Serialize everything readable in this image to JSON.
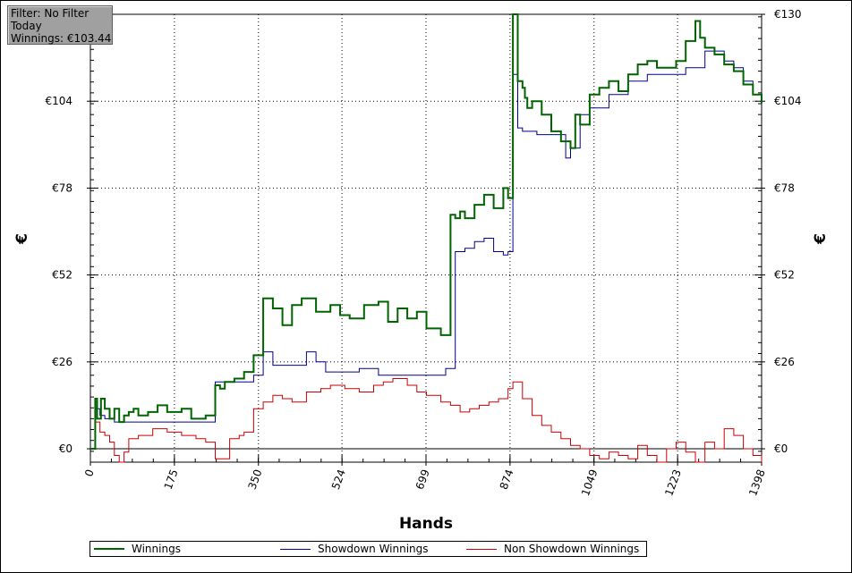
{
  "filter_box": {
    "line1": "Filter: No Filter",
    "line2": "Today",
    "line3": "Winnings: €103.44"
  },
  "chart_data": {
    "type": "line",
    "xlabel": "Hands",
    "ylabel_left": "€",
    "ylabel_right": "€",
    "xlim": [
      0,
      1398
    ],
    "ylim": [
      -4,
      130
    ],
    "x_ticks": [
      "0",
      "175",
      "350",
      "524",
      "699",
      "874",
      "1049",
      "1223",
      "1398"
    ],
    "y_ticks": [
      "€0",
      "€26",
      "€52",
      "€78",
      "€104",
      "€130"
    ],
    "y_tick_values": [
      0,
      26,
      52,
      78,
      104,
      130
    ],
    "x_tick_values": [
      0,
      175,
      350,
      524,
      699,
      874,
      1049,
      1223,
      1398
    ],
    "grid": true,
    "legend_position": "bottom",
    "colors": {
      "winnings": "#006400",
      "showdown": "#00008b",
      "non_showdown": "#cc0000",
      "zero_line": "#000000",
      "grid": "#000000"
    },
    "series": [
      {
        "name": "Winnings",
        "x": [
          0,
          10,
          14,
          22,
          30,
          40,
          50,
          60,
          70,
          80,
          90,
          100,
          120,
          140,
          160,
          190,
          210,
          240,
          260,
          270,
          280,
          300,
          320,
          340,
          360,
          380,
          400,
          420,
          440,
          470,
          500,
          520,
          540,
          570,
          600,
          620,
          640,
          660,
          680,
          700,
          730,
          750,
          760,
          770,
          780,
          800,
          820,
          840,
          860,
          870,
          880,
          890,
          900,
          905,
          910,
          920,
          940,
          960,
          980,
          1000,
          1010,
          1020,
          1040,
          1060,
          1080,
          1100,
          1120,
          1140,
          1160,
          1180,
          1200,
          1220,
          1240,
          1260,
          1270,
          1280,
          1300,
          1320,
          1340,
          1360,
          1380,
          1398
        ],
        "y": [
          0,
          15,
          9,
          15,
          12,
          9,
          12,
          8,
          10,
          11,
          12,
          10,
          11,
          13,
          11,
          12,
          9,
          10,
          19,
          18,
          20,
          21,
          23,
          28,
          45,
          42,
          37,
          43,
          45,
          41,
          43,
          40,
          39,
          43,
          44,
          38,
          42,
          39,
          41,
          36,
          34,
          70,
          69,
          71,
          69,
          73,
          76,
          72,
          78,
          75,
          130,
          110,
          108,
          105,
          102,
          104,
          100,
          95,
          92,
          90,
          100,
          97,
          106,
          108,
          110,
          107,
          112,
          115,
          116,
          114,
          114,
          116,
          122,
          128,
          123,
          120,
          118,
          115,
          113,
          109,
          106,
          103.44
        ]
      },
      {
        "name": "Showdown Winnings",
        "x": [
          0,
          10,
          20,
          30,
          50,
          80,
          120,
          180,
          250,
          260,
          300,
          340,
          360,
          380,
          410,
          450,
          470,
          490,
          520,
          560,
          600,
          650,
          700,
          740,
          760,
          780,
          800,
          820,
          840,
          860,
          870,
          880,
          890,
          900,
          930,
          960,
          990,
          1000,
          1020,
          1040,
          1080,
          1120,
          1160,
          1200,
          1240,
          1280,
          1300,
          1320,
          1340,
          1360,
          1380,
          1398
        ],
        "y": [
          0,
          12,
          10,
          9,
          8,
          8,
          8,
          8,
          8,
          20,
          20,
          22,
          29,
          25,
          25,
          29,
          26,
          23,
          23,
          24,
          22,
          22,
          22,
          24,
          59,
          60,
          62,
          63,
          59,
          58,
          59,
          112,
          96,
          95,
          94,
          94,
          87,
          90,
          100,
          102,
          106,
          110,
          112,
          112,
          114,
          119,
          119,
          116,
          114,
          110,
          106,
          103
        ]
      },
      {
        "name": "Non Showdown Winnings",
        "x": [
          0,
          10,
          20,
          30,
          40,
          50,
          60,
          70,
          80,
          100,
          130,
          160,
          190,
          220,
          240,
          260,
          290,
          310,
          320,
          340,
          360,
          380,
          400,
          420,
          450,
          480,
          500,
          530,
          560,
          590,
          610,
          630,
          660,
          680,
          700,
          730,
          750,
          770,
          790,
          810,
          830,
          850,
          870,
          880,
          900,
          920,
          940,
          960,
          980,
          1000,
          1020,
          1040,
          1060,
          1080,
          1100,
          1120,
          1140,
          1160,
          1180,
          1200,
          1220,
          1240,
          1260,
          1280,
          1300,
          1320,
          1340,
          1360,
          1380,
          1398
        ],
        "y": [
          0,
          8,
          5,
          4,
          2,
          -2,
          -5,
          -1,
          3,
          4,
          6,
          5,
          4,
          3,
          2,
          -3,
          3,
          4,
          5,
          12,
          14,
          16,
          15,
          14,
          17,
          18,
          19,
          18,
          17,
          19,
          20,
          21,
          19,
          17,
          16,
          14,
          13,
          11,
          12,
          13,
          14,
          15,
          18,
          20,
          15,
          10,
          7,
          5,
          3,
          1,
          0,
          -2,
          -3,
          -1,
          -2,
          -3,
          1,
          -2,
          -4,
          0,
          2,
          -1,
          -5,
          2,
          0,
          6,
          4,
          0,
          -2,
          -4
        ]
      }
    ]
  },
  "legend": {
    "items": [
      {
        "label": "Winnings",
        "color": "#006400"
      },
      {
        "label": "Showdown Winnings",
        "color": "#00008b"
      },
      {
        "label": "Non Showdown Winnings",
        "color": "#cc0000"
      }
    ]
  }
}
